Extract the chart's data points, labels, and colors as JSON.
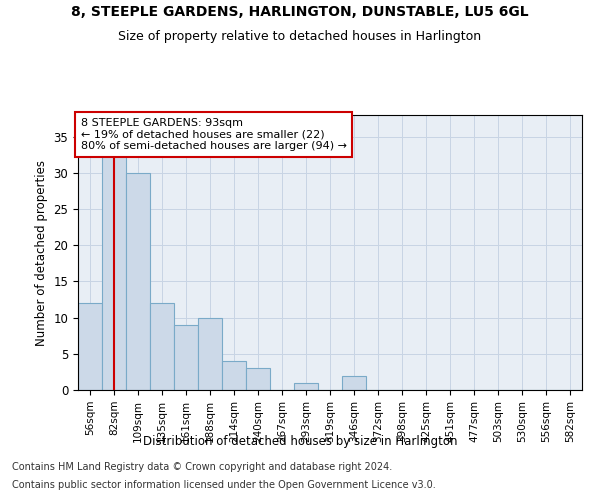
{
  "title": "8, STEEPLE GARDENS, HARLINGTON, DUNSTABLE, LU5 6GL",
  "subtitle": "Size of property relative to detached houses in Harlington",
  "xlabel": "Distribution of detached houses by size in Harlington",
  "ylabel": "Number of detached properties",
  "bar_labels": [
    "56sqm",
    "82sqm",
    "109sqm",
    "135sqm",
    "161sqm",
    "188sqm",
    "214sqm",
    "240sqm",
    "267sqm",
    "293sqm",
    "319sqm",
    "346sqm",
    "372sqm",
    "398sqm",
    "425sqm",
    "451sqm",
    "477sqm",
    "503sqm",
    "530sqm",
    "556sqm",
    "582sqm"
  ],
  "bar_values": [
    12,
    33,
    30,
    12,
    9,
    10,
    4,
    3,
    0,
    1,
    0,
    2,
    0,
    0,
    0,
    0,
    0,
    0,
    0,
    0,
    0
  ],
  "bar_color": "#ccd9e8",
  "bar_edgecolor": "#7aaac8",
  "annotation_text": "8 STEEPLE GARDENS: 93sqm\n← 19% of detached houses are smaller (22)\n80% of semi-detached houses are larger (94) →",
  "annotation_box_color": "#ffffff",
  "annotation_box_edgecolor": "#cc0000",
  "vline_color": "#cc0000",
  "vline_x": 1.0,
  "ylim": [
    0,
    38
  ],
  "yticks": [
    0,
    5,
    10,
    15,
    20,
    25,
    30,
    35
  ],
  "grid_color": "#c8d4e4",
  "background_color": "#e8eef5",
  "footnote1": "Contains HM Land Registry data © Crown copyright and database right 2024.",
  "footnote2": "Contains public sector information licensed under the Open Government Licence v3.0.",
  "title_fontsize": 10,
  "subtitle_fontsize": 9,
  "annotation_fontsize": 8,
  "footnote_fontsize": 7
}
